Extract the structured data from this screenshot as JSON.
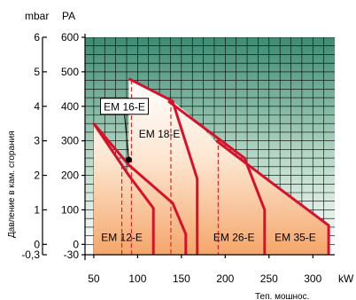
{
  "chart_data": {
    "type": "area",
    "title": "",
    "xlabel": "Теп. мошнос.",
    "x_unit": "kW",
    "ylabel": "Давление в кам. сгорания",
    "y_unit_left": "mbar",
    "y_unit_right": "PA",
    "xlim": [
      40,
      325
    ],
    "ylim": [
      -30,
      600
    ],
    "x_ticks": [
      50,
      100,
      150,
      200,
      250,
      300
    ],
    "y_ticks_pa": [
      {
        "value": 600,
        "label": "600"
      },
      {
        "value": 500,
        "label": "500"
      },
      {
        "value": 400,
        "label": "400"
      },
      {
        "value": 300,
        "label": "300"
      },
      {
        "value": 200,
        "label": "200"
      },
      {
        "value": 100,
        "label": "100"
      },
      {
        "value": 0,
        "label": "0"
      },
      {
        "value": -30,
        "label": "-30"
      }
    ],
    "y_ticks_mbar": [
      {
        "value": 600,
        "label": "6"
      },
      {
        "value": 500,
        "label": "5"
      },
      {
        "value": 400,
        "label": "4"
      },
      {
        "value": 300,
        "label": "3"
      },
      {
        "value": 200,
        "label": "2"
      },
      {
        "value": 100,
        "label": "1"
      },
      {
        "value": 0,
        "label": "0"
      },
      {
        "value": -30,
        "label": "-0,3"
      }
    ],
    "grid": true,
    "series": [
      {
        "name": "EM 12-E",
        "points": [
          [
            50,
            350
          ],
          [
            90,
            200
          ],
          [
            118,
            105
          ],
          [
            118,
            -30
          ]
        ],
        "dashed_x": [
          82
        ]
      },
      {
        "name": "EM 16-E",
        "points": [
          [
            50,
            350
          ],
          [
            90,
            230
          ],
          [
            140,
            120
          ],
          [
            155,
            30
          ],
          [
            155,
            -30
          ]
        ]
      },
      {
        "name": "EM 18-E",
        "points": [
          [
            90,
            480
          ],
          [
            140,
            415
          ],
          [
            168,
            190
          ],
          [
            168,
            -30
          ]
        ],
        "dashed_x": [
          93,
          138
        ]
      },
      {
        "name": "EM 26-E",
        "points": [
          [
            135,
            415
          ],
          [
            222,
            250
          ],
          [
            245,
            100
          ],
          [
            245,
            -30
          ]
        ],
        "dashed_x": [
          192
        ]
      },
      {
        "name": "EM 35-E",
        "points": [
          [
            190,
            300
          ],
          [
            255,
            175
          ],
          [
            318,
            55
          ],
          [
            318,
            -30
          ]
        ]
      }
    ],
    "label_positions": [
      {
        "name": "EM 12-E",
        "x": 82,
        "y": 20
      },
      {
        "name": "EM 18-E",
        "x": 125,
        "y": 320
      },
      {
        "name": "EM 26-E",
        "x": 210,
        "y": 20
      },
      {
        "name": "EM 35-E",
        "x": 280,
        "y": 20
      }
    ],
    "callout": {
      "label": "EM 16-E",
      "label_x": 85,
      "label_y": 400,
      "point_x": 90,
      "point_y": 245
    }
  }
}
